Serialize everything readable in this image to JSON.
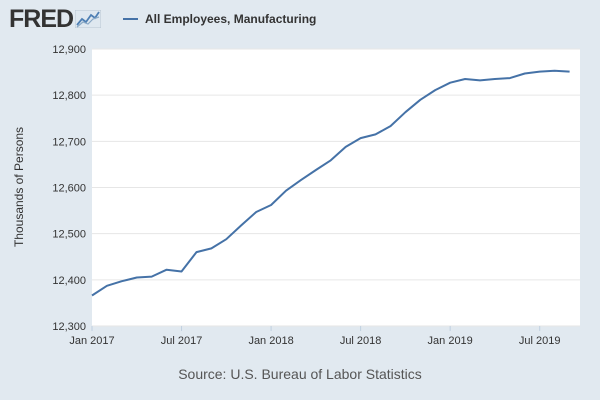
{
  "header": {
    "logo_text": "FRED",
    "legend_label": "All Employees, Manufacturing",
    "series_color": "#4572a7"
  },
  "source": "Source: U.S. Bureau of Labor Statistics",
  "chart_data": {
    "type": "line",
    "title": "",
    "xlabel": "",
    "ylabel": "Thousands of Persons",
    "ylim": [
      12300,
      12900
    ],
    "yticks": [
      "12,300",
      "12,400",
      "12,500",
      "12,600",
      "12,700",
      "12,800",
      "12,900"
    ],
    "ytick_values": [
      12300,
      12400,
      12500,
      12600,
      12700,
      12800,
      12900
    ],
    "xticks": [
      "Jan 2017",
      "Jul 2017",
      "Jan 2018",
      "Jul 2018",
      "Jan 2019",
      "Jul 2019"
    ],
    "xtick_values": [
      "2017-01",
      "2017-07",
      "2018-01",
      "2018-07",
      "2019-01",
      "2019-07"
    ],
    "grid": true,
    "legend_position": "top",
    "series": [
      {
        "name": "All Employees, Manufacturing",
        "color": "#4572a7",
        "x": [
          "2017-01",
          "2017-02",
          "2017-03",
          "2017-04",
          "2017-05",
          "2017-06",
          "2017-07",
          "2017-08",
          "2017-09",
          "2017-10",
          "2017-11",
          "2017-12",
          "2018-01",
          "2018-02",
          "2018-03",
          "2018-04",
          "2018-05",
          "2018-06",
          "2018-07",
          "2018-08",
          "2018-09",
          "2018-10",
          "2018-11",
          "2018-12",
          "2019-01",
          "2019-02",
          "2019-03",
          "2019-04",
          "2019-05",
          "2019-06",
          "2019-07",
          "2019-08",
          "2019-09"
        ],
        "values": [
          12366,
          12387,
          12397,
          12405,
          12407,
          12422,
          12418,
          12460,
          12468,
          12488,
          12518,
          12547,
          12562,
          12593,
          12616,
          12638,
          12659,
          12688,
          12707,
          12715,
          12733,
          12763,
          12790,
          12811,
          12827,
          12835,
          12832,
          12835,
          12837,
          12847,
          12851,
          12853,
          12851
        ]
      }
    ]
  }
}
